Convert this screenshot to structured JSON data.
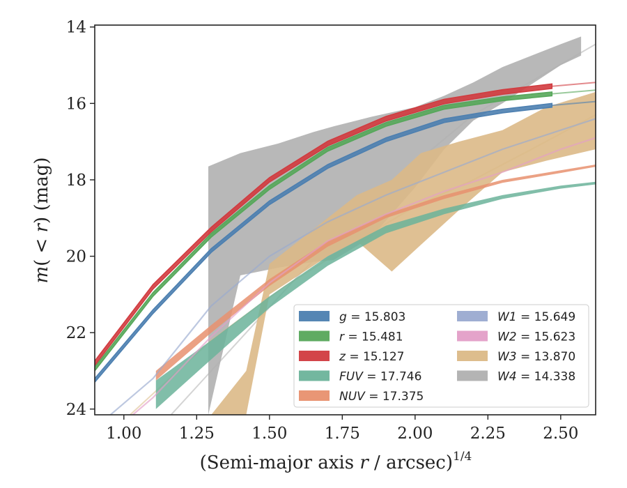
{
  "chart_data": {
    "type": "line",
    "xlabel": "(Semi-major axis r / arcsec)^{1/4}",
    "ylabel": "m(<r) (mag)",
    "xlim": [
      0.9,
      2.62
    ],
    "ylim": [
      24.15,
      13.95
    ],
    "y_inverted": true,
    "xticks": [
      "1.00",
      "1.25",
      "1.50",
      "1.75",
      "2.00",
      "2.25",
      "2.50"
    ],
    "yticks": [
      "14",
      "16",
      "18",
      "20",
      "22",
      "24"
    ],
    "legend": {
      "placement": "lower-right",
      "columns": 2
    },
    "series": [
      {
        "name": "g = 15.803",
        "label_var": "g",
        "label_val": "15.803",
        "color": "#4c7fb0",
        "x": [
          0.9,
          1.1,
          1.3,
          1.5,
          1.7,
          1.9,
          2.1,
          2.3,
          2.47
        ],
        "y": [
          23.25,
          21.45,
          19.85,
          18.6,
          17.65,
          16.95,
          16.45,
          16.2,
          16.05
        ],
        "ext_x": [
          2.47,
          2.62
        ],
        "ext_y": [
          16.05,
          15.95
        ],
        "band": 0.1
      },
      {
        "name": "r = 15.481",
        "label_var": "r",
        "label_val": "15.481",
        "color": "#56a75a",
        "x": [
          0.9,
          1.1,
          1.3,
          1.5,
          1.7,
          1.9,
          2.1,
          2.3,
          2.47
        ],
        "y": [
          22.95,
          21.0,
          19.45,
          18.2,
          17.2,
          16.55,
          16.1,
          15.88,
          15.75
        ],
        "ext_x": [
          2.47,
          2.62
        ],
        "ext_y": [
          15.75,
          15.65
        ],
        "band": 0.1
      },
      {
        "name": "z = 15.127",
        "label_var": "z",
        "label_val": "15.127",
        "color": "#d13b3f",
        "x": [
          0.9,
          1.1,
          1.3,
          1.5,
          1.7,
          1.9,
          2.1,
          2.3,
          2.47
        ],
        "y": [
          22.8,
          20.8,
          19.3,
          18.0,
          17.05,
          16.4,
          15.95,
          15.7,
          15.55
        ],
        "ext_x": [
          2.47,
          2.62
        ],
        "ext_y": [
          15.55,
          15.45
        ],
        "band": 0.12
      },
      {
        "name": "FUV = 17.746",
        "label_var": "FUV",
        "label_val": "17.746",
        "color": "#6bb39a",
        "x": [
          1.11,
          1.3,
          1.5,
          1.7,
          1.9,
          2.1,
          2.3,
          2.5,
          2.62
        ],
        "y_top": [
          23.25,
          22.2,
          21.05,
          20.0,
          19.2,
          18.75,
          18.4,
          18.15,
          18.05
        ],
        "y_bot": [
          24.0,
          22.7,
          21.35,
          20.25,
          19.4,
          18.9,
          18.5,
          18.23,
          18.12
        ]
      },
      {
        "name": "NUV = 17.375",
        "label_var": "NUV",
        "label_val": "17.375",
        "color": "#e8906e",
        "x": [
          1.11,
          1.3,
          1.5,
          1.7,
          1.9,
          2.1,
          2.3,
          2.5,
          2.62
        ],
        "y_top": [
          23.0,
          21.8,
          20.6,
          19.6,
          18.9,
          18.4,
          18.0,
          17.75,
          17.6
        ],
        "y_bot": [
          23.25,
          22.0,
          20.78,
          19.75,
          19.0,
          18.5,
          18.08,
          17.82,
          17.66
        ]
      },
      {
        "name": "W1 = 15.649",
        "label_var": "W1",
        "label_val": "15.649",
        "color": "#9aaad0",
        "x": [
          0.9,
          1.1,
          1.3,
          1.5,
          1.7,
          1.9,
          2.1,
          2.3,
          2.5,
          2.62
        ],
        "y": [
          24.5,
          23.2,
          21.3,
          20.0,
          19.1,
          18.4,
          17.8,
          17.2,
          16.7,
          16.4
        ]
      },
      {
        "name": "W2 = 15.623",
        "label_var": "W2",
        "label_val": "15.623",
        "color": "#e39ec7",
        "x": [
          0.9,
          1.1,
          1.3,
          1.5,
          1.7,
          1.9,
          2.1,
          2.3,
          2.5,
          2.62
        ],
        "y": [
          25.0,
          23.7,
          22.1,
          20.7,
          19.6,
          18.9,
          18.3,
          17.8,
          17.2,
          16.9
        ]
      },
      {
        "name": "W3 = 13.870",
        "label_var": "W3",
        "label_val": "13.870",
        "color": "#dbb987",
        "x": [
          1.3,
          1.42,
          1.5,
          1.6,
          1.7,
          1.8,
          1.92,
          2.02,
          2.15,
          2.3,
          2.45,
          2.62
        ],
        "y_top": [
          24.15,
          23.0,
          20.2,
          19.6,
          19.0,
          18.4,
          18.0,
          17.3,
          17.0,
          16.7,
          16.1,
          15.7
        ],
        "y_bot": [
          24.15,
          24.15,
          21.0,
          20.5,
          20.0,
          19.6,
          20.4,
          19.7,
          18.8,
          17.8,
          17.5,
          17.2
        ],
        "ext_x": [
          1.0,
          1.3,
          1.55,
          1.8,
          2.0,
          2.2,
          2.4,
          2.62
        ],
        "ext_y": [
          24.3,
          22.2,
          20.8,
          19.6,
          18.7,
          18.0,
          17.2,
          16.3
        ]
      },
      {
        "name": "W4 = 14.338",
        "label_var": "W4",
        "label_val": "14.338",
        "color": "#b0b0b0",
        "x": [
          1.29,
          1.4,
          1.53,
          1.65,
          1.72,
          1.85,
          2.0,
          2.1,
          2.2,
          2.3,
          2.4,
          2.5,
          2.57
        ],
        "y_top": [
          17.65,
          17.3,
          17.05,
          16.75,
          16.6,
          16.35,
          16.1,
          15.8,
          15.45,
          15.05,
          14.75,
          14.45,
          14.25
        ],
        "y_bot": [
          24.15,
          20.5,
          20.3,
          20.15,
          20.1,
          19.5,
          18.2,
          17.2,
          16.45,
          16.0,
          15.5,
          15.0,
          14.75
        ],
        "ext_x": [
          1.0,
          1.3,
          1.6,
          1.9,
          2.2,
          2.62
        ],
        "ext_y": [
          25.5,
          23.0,
          20.5,
          18.2,
          16.3,
          14.45
        ]
      }
    ]
  }
}
